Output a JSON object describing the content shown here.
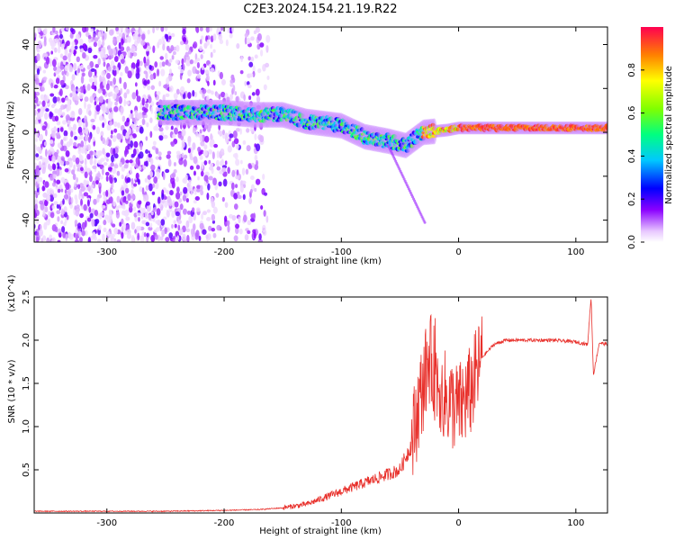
{
  "title": "C2E3.2024.154.21.19.R22",
  "chart_data": [
    {
      "type": "heatmap",
      "xlabel": "Height of straight line (km)",
      "ylabel": "Frequency (Hz)",
      "xlim": [
        -362,
        127
      ],
      "ylim": [
        -50,
        48
      ],
      "xticks": [
        -300,
        -200,
        -100,
        0,
        100
      ],
      "yticks": [
        -40,
        -20,
        0,
        20,
        40
      ],
      "colorbar": {
        "label": "Normalized spectral amplitude",
        "range": [
          0,
          1
        ],
        "ticks": [
          "0.0",
          "0.2",
          "0.4",
          "0.6",
          "0.8"
        ],
        "colormap": "rainbow"
      },
      "ridge": [
        {
          "x": -255,
          "f": 9
        },
        {
          "x": -200,
          "f": 9
        },
        {
          "x": -175,
          "f": 8
        },
        {
          "x": -150,
          "f": 8
        },
        {
          "x": -130,
          "f": 5
        },
        {
          "x": -100,
          "f": 3
        },
        {
          "x": -80,
          "f": -2
        },
        {
          "x": -60,
          "f": -4
        },
        {
          "x": -45,
          "f": -6
        },
        {
          "x": -30,
          "f": 0
        },
        {
          "x": -10,
          "f": 1
        },
        {
          "x": 0,
          "f": 2
        },
        {
          "x": 50,
          "f": 2
        },
        {
          "x": 127,
          "f": 2
        }
      ]
    },
    {
      "type": "line",
      "xlabel": "Height of straight line (km)",
      "ylabel": "SNR (10 * v/v)",
      "y_scale_note": "(x10^4)",
      "xlim": [
        -362,
        127
      ],
      "ylim": [
        0,
        2.5
      ],
      "xticks": [
        -300,
        -200,
        -100,
        0,
        100
      ],
      "yticks": [
        "0.5",
        "1.0",
        "1.5",
        "2.0",
        "2.5"
      ],
      "series": [
        {
          "color": "#e8302b",
          "points": [
            [
              -362,
              0.02
            ],
            [
              -300,
              0.02
            ],
            [
              -250,
              0.02
            ],
            [
              -200,
              0.03
            ],
            [
              -170,
              0.04
            ],
            [
              -150,
              0.06
            ],
            [
              -130,
              0.1
            ],
            [
              -120,
              0.15
            ],
            [
              -100,
              0.25
            ],
            [
              -80,
              0.35
            ],
            [
              -60,
              0.45
            ],
            [
              -50,
              0.5
            ],
            [
              -40,
              0.8
            ],
            [
              -35,
              1.2
            ],
            [
              -30,
              1.5
            ],
            [
              -25,
              1.8
            ],
            [
              -20,
              1.6
            ],
            [
              -10,
              1.3
            ],
            [
              0,
              1.2
            ],
            [
              10,
              1.4
            ],
            [
              20,
              1.8
            ],
            [
              30,
              1.95
            ],
            [
              40,
              2.0
            ],
            [
              60,
              2.0
            ],
            [
              80,
              2.0
            ],
            [
              100,
              1.98
            ],
            [
              110,
              1.95
            ],
            [
              113,
              2.5
            ],
            [
              115,
              1.6
            ],
            [
              120,
              1.97
            ],
            [
              127,
              1.95
            ]
          ]
        }
      ]
    }
  ]
}
